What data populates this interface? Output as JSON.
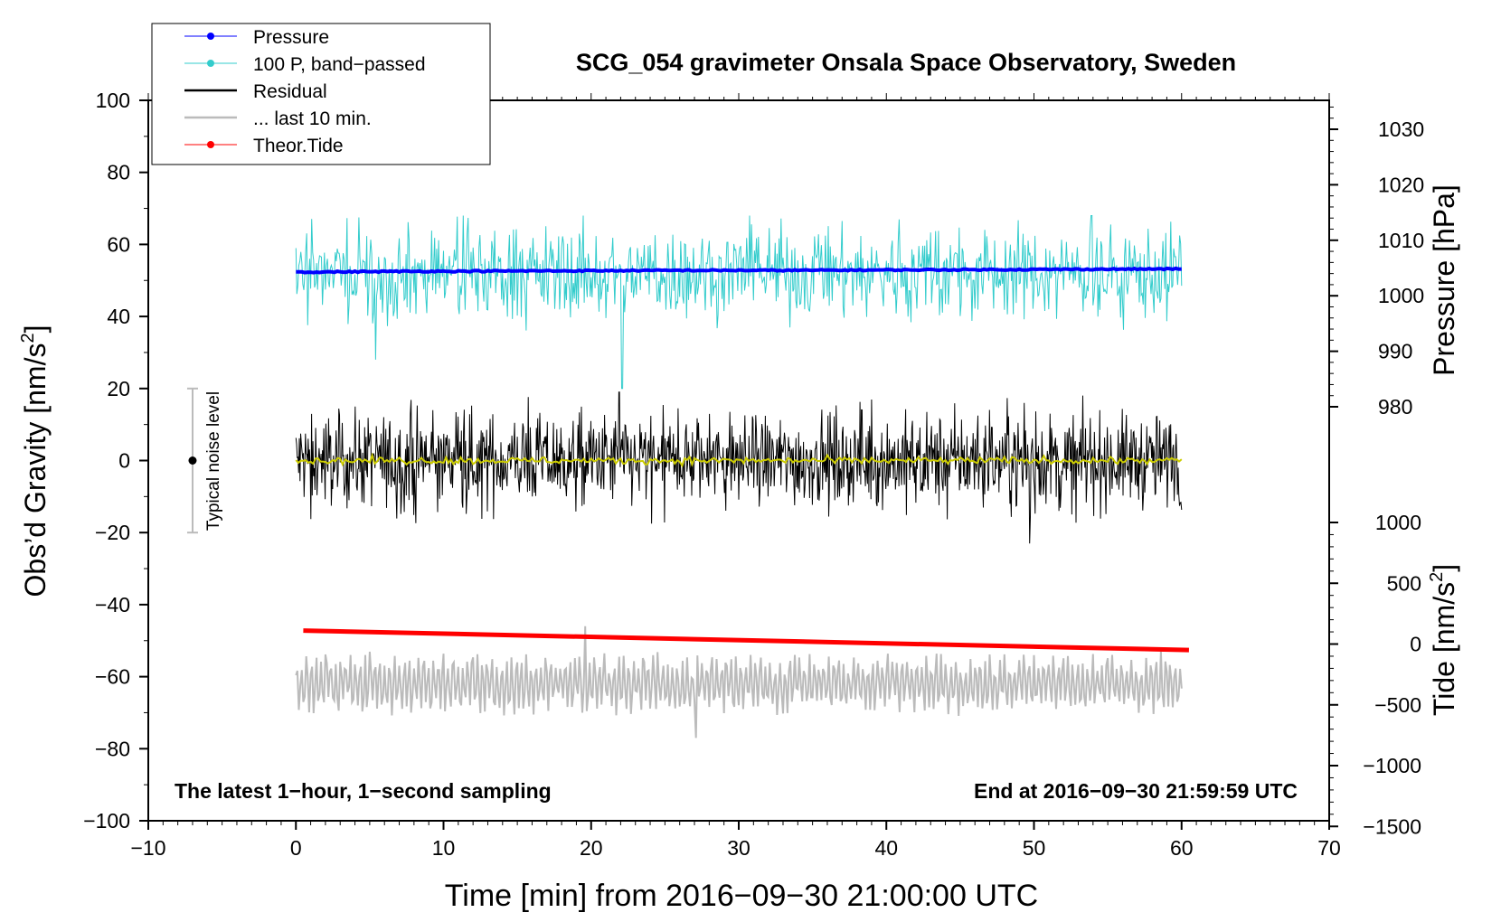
{
  "chart_data": {
    "type": "line",
    "title": "SCG_054 gravimeter Onsala Space Observatory, Sweden",
    "xlabel": "Time [min] from 2016−09−30 21:00:00 UTC",
    "ylabel": "Obs’d Gravity [nm/s²]",
    "ylabel_main": "Obs’d Gravity [nm/s",
    "ylabel_sup": "2",
    "ylabel_end": "]",
    "xlim": [
      -10,
      70
    ],
    "ylim": [
      -100,
      100
    ],
    "x_ticks": [
      "−10",
      "0",
      "10",
      "20",
      "30",
      "40",
      "50",
      "60",
      "70"
    ],
    "y_ticks": [
      "100",
      "80",
      "60",
      "40",
      "20",
      "0",
      "−20",
      "−40",
      "−60",
      "−80",
      "−100"
    ],
    "pressure_axis": {
      "label": "Pressure [hPa]",
      "ticks": [
        "1030",
        "1020",
        "1010",
        "1000",
        "990",
        "980"
      ],
      "tick_values": [
        1030,
        1020,
        1010,
        1000,
        990,
        980
      ]
    },
    "tide_axis": {
      "label_main": "Tide [nm/s",
      "label_sup": "2",
      "label_end": "]",
      "ticks": [
        "1000",
        "500",
        "0",
        "−500",
        "−1000",
        "−1500"
      ],
      "tick_values": [
        1000,
        500,
        0,
        -500,
        -1000,
        -1500
      ]
    },
    "legend": {
      "placement": "top-left",
      "entries": [
        {
          "label": "Pressure",
          "color": "#0000ff",
          "marker": true
        },
        {
          "label": "100 P, band−passed",
          "color": "#33cccc",
          "marker": true
        },
        {
          "label": "Residual",
          "color": "#000000",
          "marker": false
        },
        {
          "label": "... last 10 min.",
          "color": "#bbbbbb",
          "marker": false
        },
        {
          "label": "Theor.Tide",
          "color": "#ff0000",
          "marker": true
        }
      ]
    },
    "noise_bar": {
      "label": "Typical noise level",
      "center": 0,
      "low": -20,
      "high": 20,
      "x_min": -7
    },
    "annotation_left": "The latest 1−hour, 1−second sampling",
    "annotation_right": "End at 2016−09−30 21:59:59 UTC",
    "series": [
      {
        "name": "Pressure",
        "color": "#0000ff",
        "x_start": 0,
        "x_end": 60,
        "values_plot_units": [
          52.3,
          52.5,
          52.6,
          52.7,
          52.8,
          52.8,
          52.9,
          53.0,
          53.1,
          53.2
        ],
        "values_hPa_approx": [
          1003.5,
          1003.8,
          1004.0,
          1004.2,
          1004.5
        ]
      },
      {
        "name": "100 P, band−passed",
        "color": "#33cccc",
        "x_start": 0,
        "x_end": 60,
        "center": 52,
        "amplitude": 7,
        "min": 20,
        "max": 68
      },
      {
        "name": "Residual",
        "color": "#000000",
        "x_start": 0,
        "x_end": 60,
        "center": 0,
        "amplitude": 7,
        "min": -23,
        "max": 19
      },
      {
        "name": "Residual smoothed",
        "color": "#cccc00",
        "x_start": 0,
        "x_end": 60,
        "center": 0,
        "amplitude": 1
      },
      {
        "name": "... last 10 min.",
        "color": "#bbbbbb",
        "x_start": 0,
        "x_end": 60,
        "center": -62,
        "amplitude": 7,
        "min": -77,
        "max": -46
      },
      {
        "name": "Theor.Tide",
        "color": "#ff0000",
        "x_start": 0.5,
        "x_end": 60.5,
        "values_plot_units": [
          -47.2,
          -52.6
        ],
        "values_nm_s2": [
          90,
          -35
        ]
      }
    ]
  }
}
